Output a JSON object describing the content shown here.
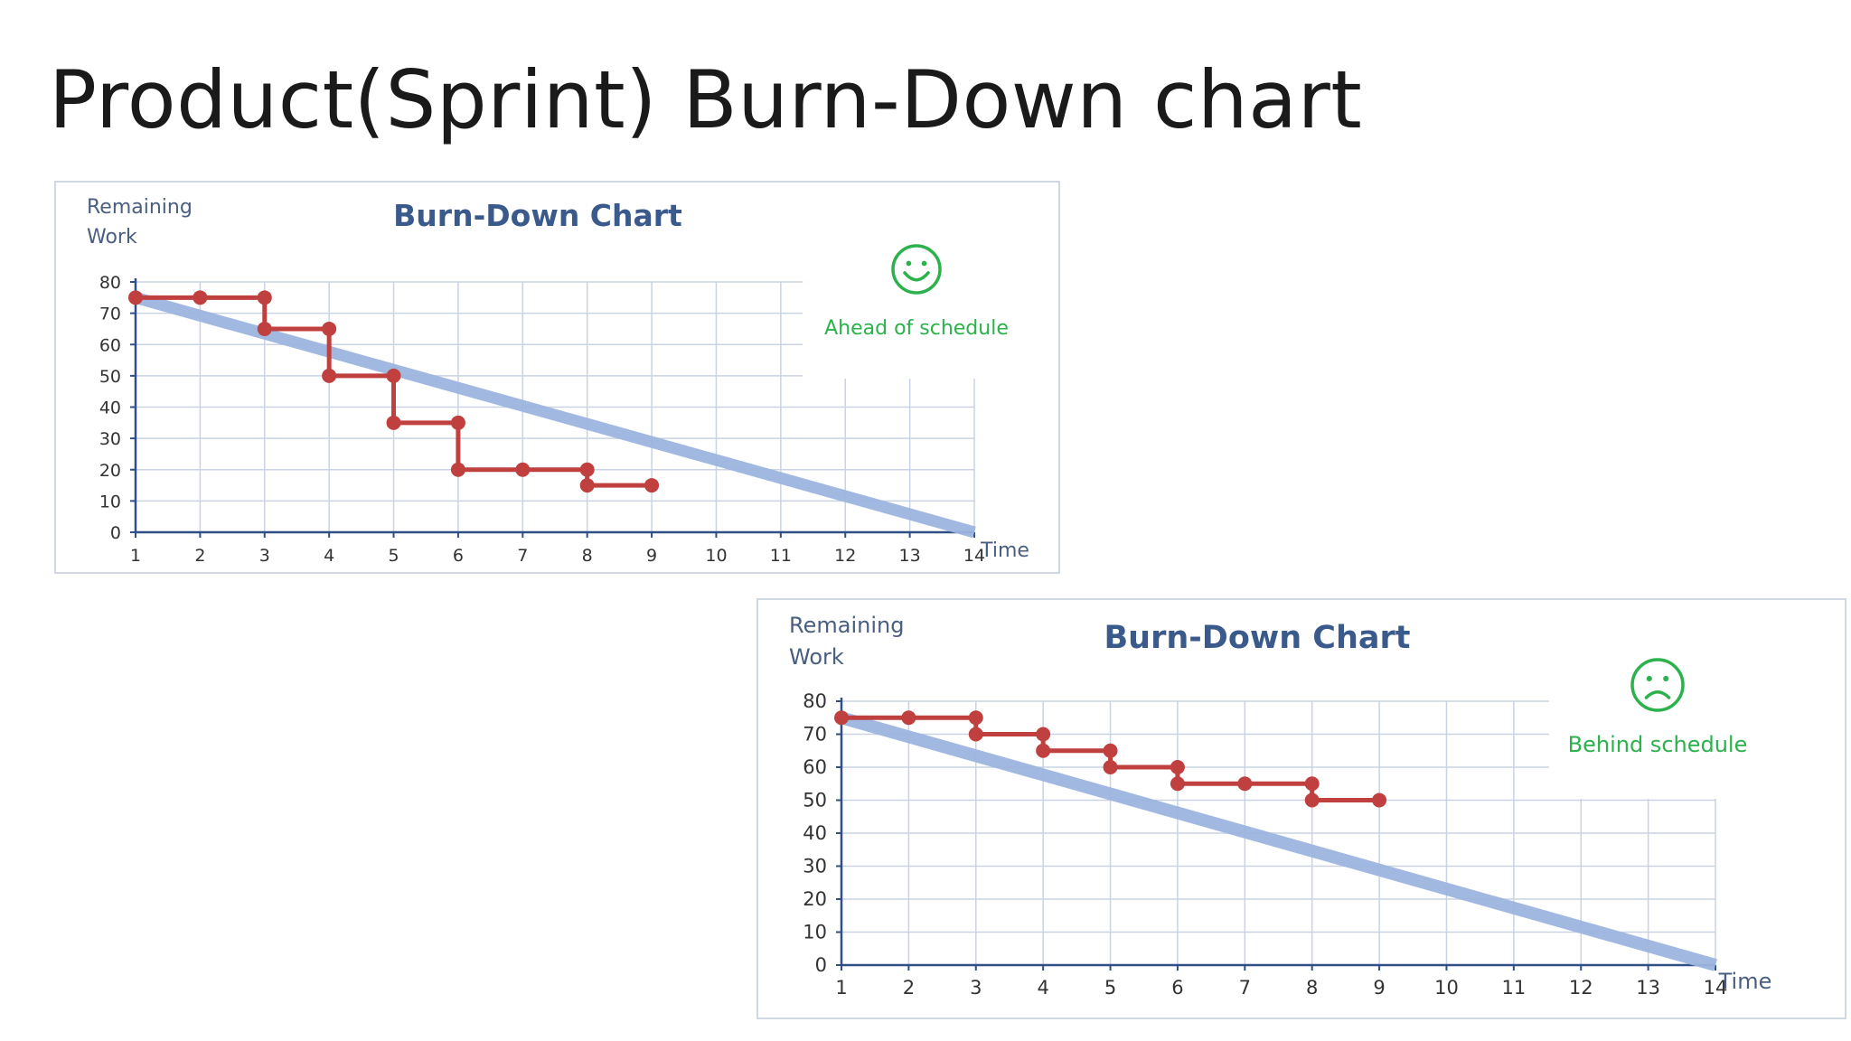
{
  "slide": {
    "title": "Product(Sprint) Burn-Down chart"
  },
  "chart_data": [
    {
      "type": "line",
      "title": "Burn-Down Chart",
      "xlabel": "Time",
      "ylabel_lines": [
        "Remaining",
        "Work"
      ],
      "status_text": "Ahead of schedule",
      "status_icon": "smiley-happy-icon",
      "status_color": "#2bb24c",
      "x_ticks": [
        1,
        2,
        3,
        4,
        5,
        6,
        7,
        8,
        9,
        10,
        11,
        12,
        13,
        14
      ],
      "y_ticks": [
        0,
        10,
        20,
        30,
        40,
        50,
        60,
        70,
        80
      ],
      "xlim": [
        1,
        14
      ],
      "ylim": [
        0,
        80
      ],
      "grid": true,
      "colors": {
        "ideal": "#9db5df",
        "actual": "#c0403f",
        "title": "#3b5a8c",
        "grid": "#c9d3e4",
        "axis": "#2f4f86",
        "label": "#4a5f80"
      },
      "ideal_line": {
        "x": [
          1,
          14
        ],
        "y": [
          75,
          0
        ]
      },
      "actual": {
        "x": [
          1,
          2,
          3,
          3,
          4,
          4,
          5,
          5,
          6,
          6,
          7,
          8,
          8,
          9
        ],
        "y": [
          75,
          75,
          75,
          65,
          65,
          50,
          50,
          35,
          35,
          20,
          20,
          20,
          15,
          15
        ]
      }
    },
    {
      "type": "line",
      "title": "Burn-Down Chart",
      "xlabel": "Time",
      "ylabel_lines": [
        "Remaining",
        "Work"
      ],
      "status_text": "Behind schedule",
      "status_icon": "smiley-sad-icon",
      "status_color": "#2bb24c",
      "x_ticks": [
        1,
        2,
        3,
        4,
        5,
        6,
        7,
        8,
        9,
        10,
        11,
        12,
        13,
        14
      ],
      "y_ticks": [
        0,
        10,
        20,
        30,
        40,
        50,
        60,
        70,
        80
      ],
      "xlim": [
        1,
        14
      ],
      "ylim": [
        0,
        80
      ],
      "grid": true,
      "colors": {
        "ideal": "#9db5df",
        "actual": "#c0403f",
        "title": "#3b5a8c",
        "grid": "#c9d3e4",
        "axis": "#2f4f86",
        "label": "#4a5f80"
      },
      "ideal_line": {
        "x": [
          1,
          14
        ],
        "y": [
          75,
          0
        ]
      },
      "actual": {
        "x": [
          1,
          2,
          3,
          3,
          4,
          4,
          5,
          5,
          6,
          6,
          7,
          8,
          8,
          9
        ],
        "y": [
          75,
          75,
          75,
          70,
          70,
          65,
          65,
          60,
          60,
          55,
          55,
          55,
          50,
          50
        ]
      }
    }
  ]
}
